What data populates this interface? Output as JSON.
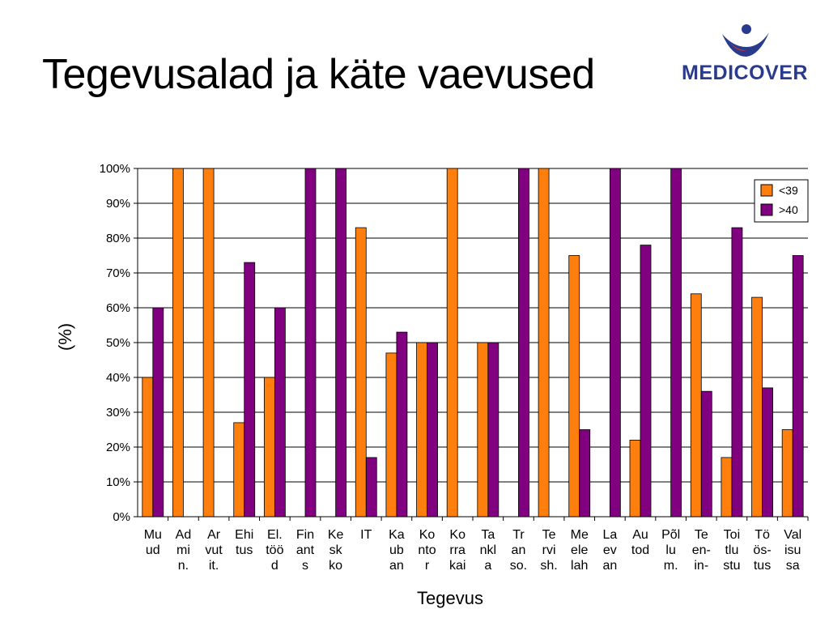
{
  "slide": {
    "title": "Tegevusalad ja käte vaevused",
    "logo_text": "MEDICOVER"
  },
  "colors": {
    "series_lt39": "#ff7f0e",
    "series_gt40": "#800080",
    "logo": "#2a3a8c"
  },
  "chart_data": {
    "type": "bar",
    "xlabel": "Tegevus",
    "ylabel": "(%)",
    "ylim": [
      0,
      100
    ],
    "yticks": [
      "0%",
      "10%",
      "20%",
      "30%",
      "40%",
      "50%",
      "60%",
      "70%",
      "80%",
      "90%",
      "100%"
    ],
    "grid": true,
    "legend_position": "top-right",
    "categories": [
      [
        "Mu",
        "ud"
      ],
      [
        "Ad",
        "mi",
        "n."
      ],
      [
        "Ar",
        "vut",
        "it."
      ],
      [
        "Ehi",
        "tus"
      ],
      [
        "El.",
        "töö",
        "d"
      ],
      [
        "Fin",
        "ant",
        "s"
      ],
      [
        "Ke",
        "sk",
        "ko"
      ],
      [
        "IT"
      ],
      [
        "Ka",
        "ub",
        "an"
      ],
      [
        "Ko",
        "nto",
        "r"
      ],
      [
        "Ko",
        "rra",
        "kai"
      ],
      [
        "Ta",
        "nkl",
        "a"
      ],
      [
        "Tr",
        "an",
        "so."
      ],
      [
        "Te",
        "rvi",
        "sh."
      ],
      [
        "Me",
        "ele",
        "lah"
      ],
      [
        "La",
        "ev",
        "an"
      ],
      [
        "Au",
        "tod"
      ],
      [
        "Põl",
        "lu",
        "m."
      ],
      [
        "Te",
        "en-",
        "in-"
      ],
      [
        "Toi",
        "tlu",
        "stu"
      ],
      [
        "Tö",
        "ös-",
        "tus"
      ],
      [
        "Val",
        "isu",
        "sa"
      ]
    ],
    "series": [
      {
        "name": "<39",
        "values": [
          40,
          100,
          100,
          27,
          40,
          0,
          0,
          83,
          47,
          50,
          100,
          50,
          0,
          100,
          75,
          0,
          22,
          0,
          64,
          17,
          63,
          25
        ]
      },
      {
        "name": ">40",
        "values": [
          60,
          0,
          0,
          73,
          60,
          100,
          100,
          17,
          53,
          50,
          0,
          50,
          100,
          0,
          25,
          100,
          78,
          100,
          36,
          83,
          37,
          75
        ]
      }
    ]
  }
}
